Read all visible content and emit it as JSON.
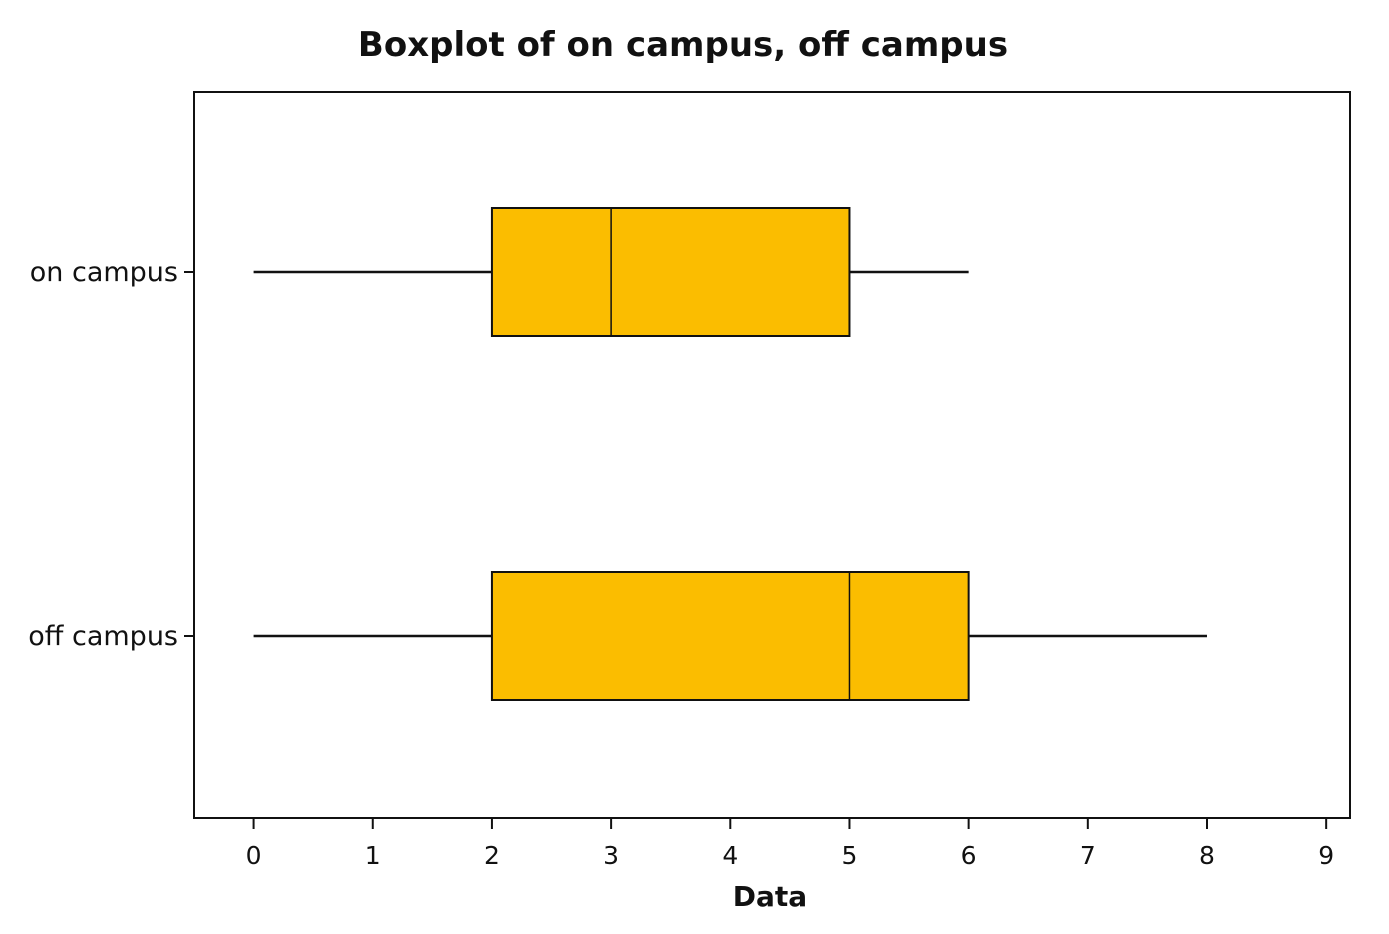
{
  "chart_data": {
    "type": "boxplot",
    "title": "Boxplot of on campus, off campus",
    "xlabel": "Data",
    "ylabel": "",
    "xlim": [
      -0.5,
      9.2
    ],
    "x_ticks": [
      0,
      1,
      2,
      3,
      4,
      5,
      6,
      7,
      8,
      9
    ],
    "orientation": "horizontal",
    "grid": false,
    "box_color": "#fbbd00",
    "line_color": "#111111",
    "series": [
      {
        "name": "on campus",
        "min": 0,
        "q1": 2,
        "median": 3,
        "q3": 5,
        "max": 6
      },
      {
        "name": "off campus",
        "min": 0,
        "q1": 2,
        "median": 5,
        "q3": 6,
        "max": 8
      }
    ]
  }
}
